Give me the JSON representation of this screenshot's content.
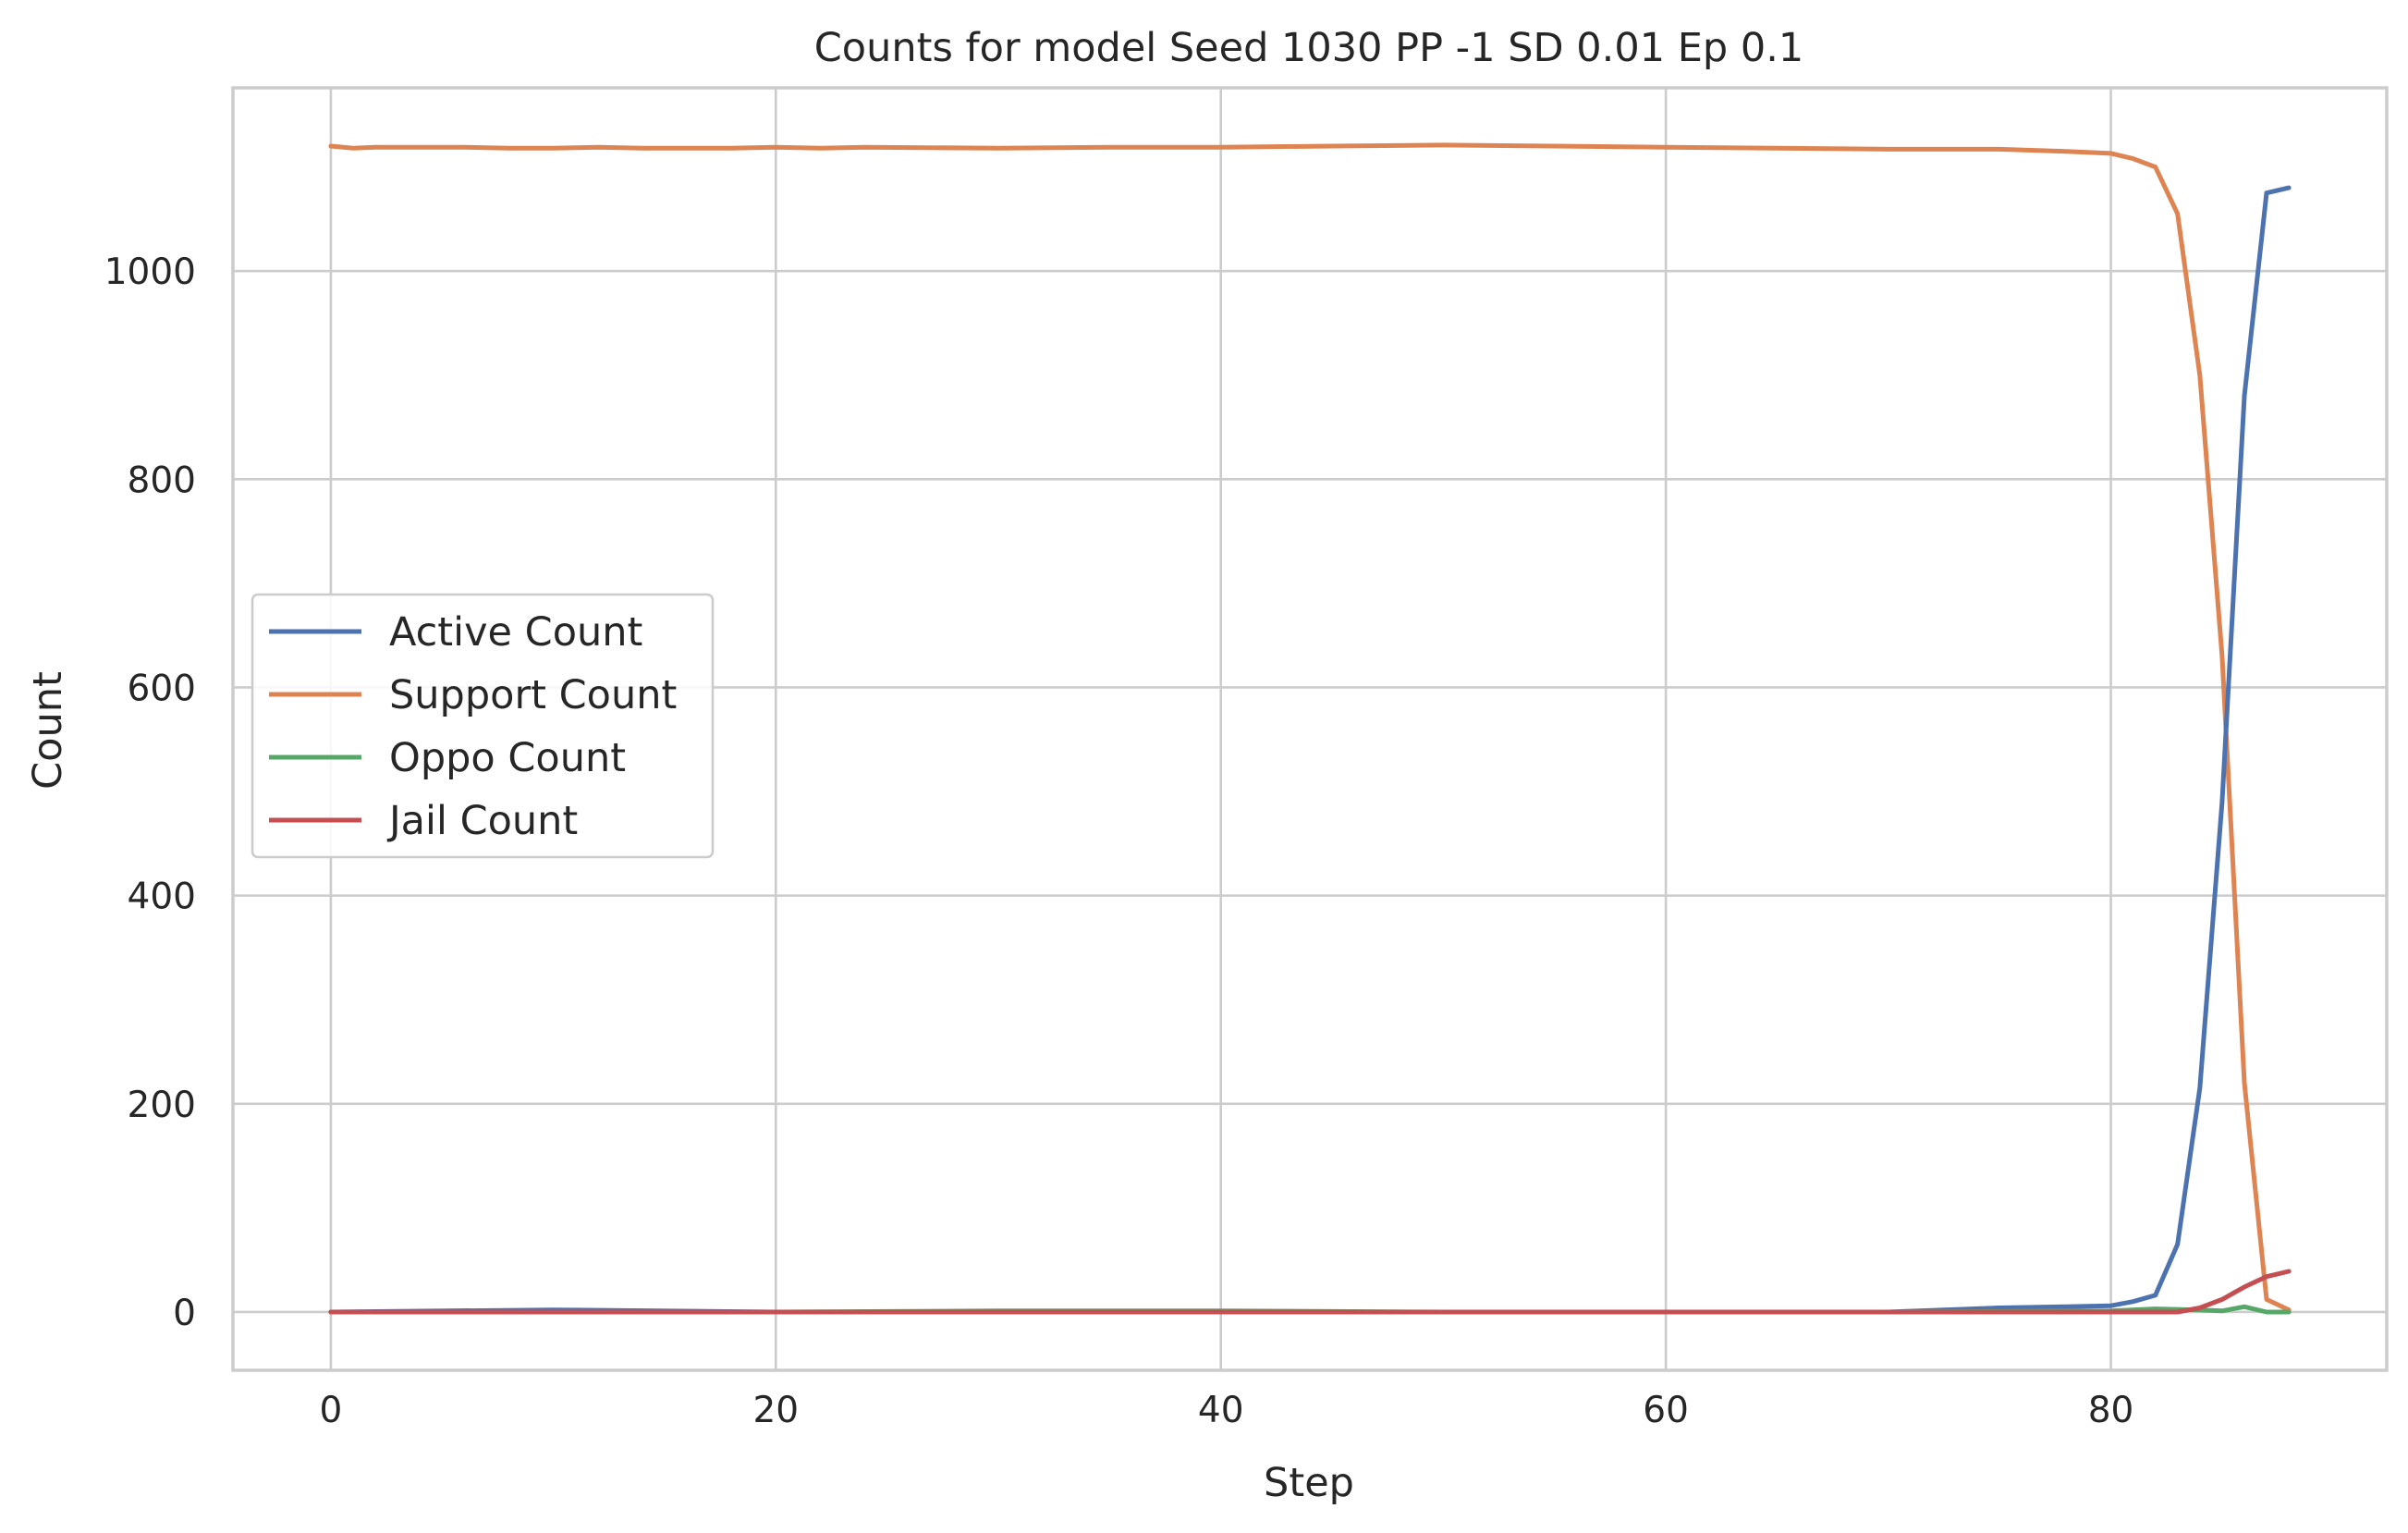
{
  "chart_data": {
    "type": "line",
    "title": "Counts for model Seed 1030 PP -1 SD 0.01 Ep 0.1",
    "xlabel": "Step",
    "ylabel": "Count",
    "xlim": [
      -4.4,
      92.4
    ],
    "ylim": [
      -56,
      1176
    ],
    "xticks": [
      0,
      20,
      40,
      60,
      80
    ],
    "yticks": [
      0,
      200,
      400,
      600,
      800,
      1000
    ],
    "grid": true,
    "legend_position": "center-left",
    "series": [
      {
        "name": "Active Count",
        "color": "#4c72b0",
        "points": [
          [
            0,
            0
          ],
          [
            10,
            2
          ],
          [
            20,
            0
          ],
          [
            30,
            0
          ],
          [
            40,
            0
          ],
          [
            50,
            0
          ],
          [
            60,
            0
          ],
          [
            70,
            0
          ],
          [
            75,
            4
          ],
          [
            78,
            5
          ],
          [
            80,
            6
          ],
          [
            81,
            10
          ],
          [
            82,
            16
          ],
          [
            83,
            65
          ],
          [
            84,
            215
          ],
          [
            85,
            490
          ],
          [
            86,
            880
          ],
          [
            87,
            1075
          ],
          [
            88,
            1080
          ]
        ]
      },
      {
        "name": "Support Count",
        "color": "#dd8452",
        "points": [
          [
            0,
            1120
          ],
          [
            1,
            1118
          ],
          [
            2,
            1119
          ],
          [
            6,
            1119
          ],
          [
            8,
            1118
          ],
          [
            10,
            1118
          ],
          [
            12,
            1119
          ],
          [
            14,
            1118
          ],
          [
            18,
            1118
          ],
          [
            20,
            1119
          ],
          [
            22,
            1118
          ],
          [
            24,
            1119
          ],
          [
            30,
            1118
          ],
          [
            35,
            1119
          ],
          [
            40,
            1119
          ],
          [
            45,
            1120
          ],
          [
            50,
            1121
          ],
          [
            55,
            1120
          ],
          [
            60,
            1119
          ],
          [
            65,
            1118
          ],
          [
            70,
            1117
          ],
          [
            75,
            1117
          ],
          [
            78,
            1115
          ],
          [
            80,
            1113
          ],
          [
            81,
            1108
          ],
          [
            82,
            1100
          ],
          [
            83,
            1055
          ],
          [
            84,
            900
          ],
          [
            85,
            630
          ],
          [
            86,
            220
          ],
          [
            87,
            12
          ],
          [
            88,
            2
          ]
        ]
      },
      {
        "name": "Oppo Count",
        "color": "#55a868",
        "points": [
          [
            0,
            0
          ],
          [
            10,
            0
          ],
          [
            20,
            0
          ],
          [
            30,
            1
          ],
          [
            40,
            1
          ],
          [
            50,
            0
          ],
          [
            60,
            0
          ],
          [
            70,
            0
          ],
          [
            80,
            1
          ],
          [
            82,
            3
          ],
          [
            84,
            2
          ],
          [
            85,
            1
          ],
          [
            86,
            5
          ],
          [
            87,
            0
          ],
          [
            88,
            0
          ]
        ]
      },
      {
        "name": "Jail Count",
        "color": "#c44e52",
        "points": [
          [
            0,
            0
          ],
          [
            20,
            0
          ],
          [
            40,
            0
          ],
          [
            60,
            0
          ],
          [
            80,
            0
          ],
          [
            83,
            0
          ],
          [
            84,
            4
          ],
          [
            85,
            12
          ],
          [
            86,
            24
          ],
          [
            87,
            34
          ],
          [
            88,
            39
          ]
        ]
      }
    ]
  }
}
